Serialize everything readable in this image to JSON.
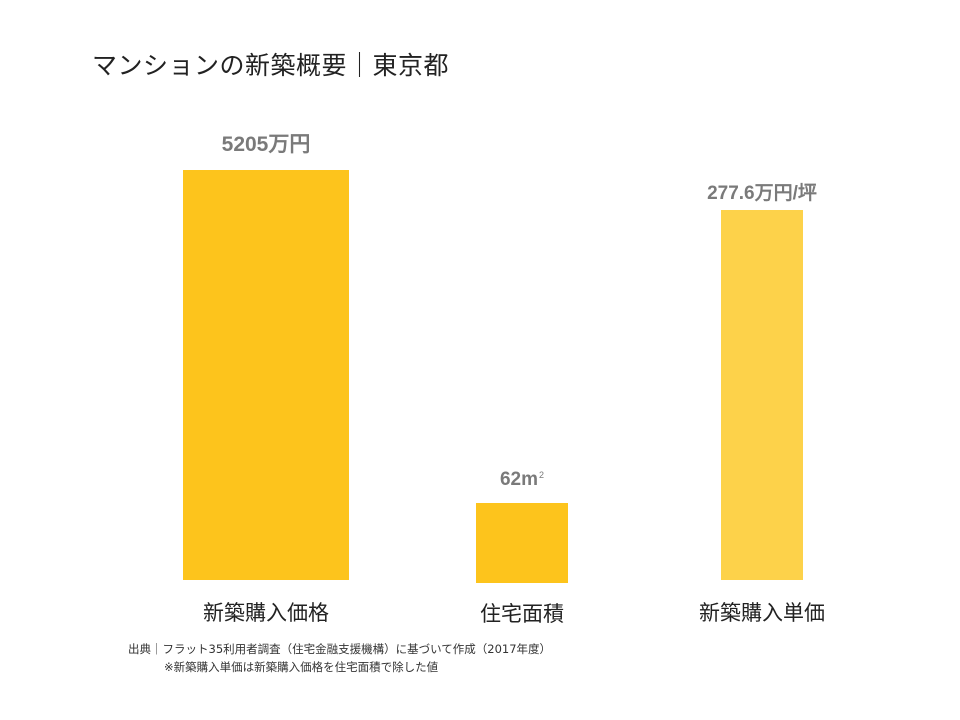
{
  "title": "マンションの新築概要｜東京都",
  "chart_data": {
    "type": "bar",
    "categories": [
      "新築購入価格",
      "住宅面積",
      "新築購入単価"
    ],
    "values": [
      5205,
      62,
      277.6
    ],
    "value_labels": [
      "5205万円",
      "62㎡",
      "277.6万円/坪"
    ],
    "units": [
      "万円",
      "㎡",
      "万円/坪"
    ],
    "colors": [
      "#fdc41c",
      "#fdc41c",
      "#fdd24a"
    ],
    "grid": false,
    "legend": "none"
  },
  "footer": {
    "source": "出典｜フラット35利用者調査（住宅金融支援機構）に基づいて作成（2017年度）",
    "note": "※新築購入単価は新築購入価格を住宅面積で除した値"
  }
}
